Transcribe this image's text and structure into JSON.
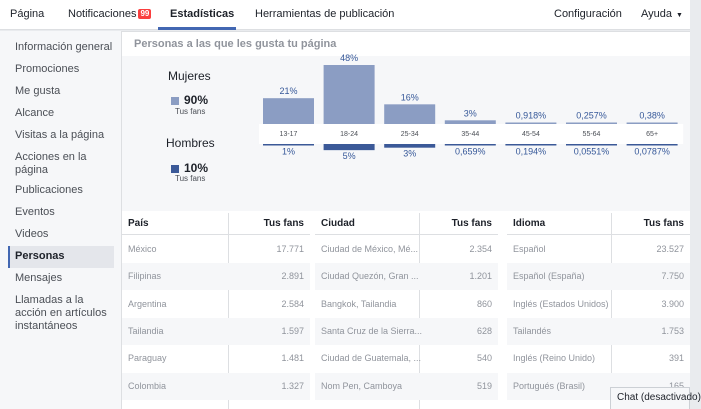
{
  "topnav": {
    "pagina": "Página",
    "notificaciones": "Notificaciones",
    "notif_count": "99",
    "estadisticas": "Estadísticas",
    "herramientas": "Herramientas de publicación",
    "configuracion": "Configuración",
    "ayuda": "Ayuda",
    "caret": "▼"
  },
  "sidebar": {
    "items": [
      "Información general",
      "Promociones",
      "Me gusta",
      "Alcance",
      "Visitas a la página",
      "Acciones en la página",
      "Publicaciones",
      "Eventos",
      "Videos",
      "Personas",
      "Mensajes",
      "Llamadas a la acción en artículos instantáneos"
    ],
    "active_index": 9
  },
  "panel": {
    "title": "Personas a las que les gusta tu página"
  },
  "legend": {
    "women_label": "Mujeres",
    "women_pct": "90%",
    "women_sub": "Tus fans",
    "men_label": "Hombres",
    "men_pct": "10%",
    "men_sub": "Tus fans"
  },
  "colors": {
    "women": "#8b9dc3",
    "men": "#3b5998",
    "link": "#365899",
    "accent": "#4267b2"
  },
  "chart_data": {
    "type": "bar",
    "categories": [
      "13-17",
      "18-24",
      "25-34",
      "35-44",
      "45-54",
      "55-64",
      "65+"
    ],
    "series": [
      {
        "name": "Mujeres",
        "values": [
          21,
          48,
          16,
          3,
          0.918,
          0.257,
          0.38
        ],
        "labels": [
          "21%",
          "48%",
          "16%",
          "3%",
          "0,918%",
          "0,257%",
          "0,38%"
        ]
      },
      {
        "name": "Hombres",
        "values": [
          1,
          5,
          3,
          0.659,
          0.194,
          0.0551,
          0.0787
        ],
        "labels": [
          "1%",
          "5%",
          "3%",
          "0,659%",
          "0,194%",
          "0,0551%",
          "0,0787%"
        ]
      }
    ]
  },
  "tables": [
    {
      "col1": "País",
      "col2": "Tus fans",
      "rows": [
        [
          "México",
          "17.771"
        ],
        [
          "Filipinas",
          "2.891"
        ],
        [
          "Argentina",
          "2.584"
        ],
        [
          "Tailandia",
          "1.597"
        ],
        [
          "Paraguay",
          "1.481"
        ],
        [
          "Colombia",
          "1.327"
        ]
      ]
    },
    {
      "col1": "Ciudad",
      "col2": "Tus fans",
      "rows": [
        [
          "Ciudad de México, Mé...",
          "2.354"
        ],
        [
          "Ciudad Quezón, Gran ...",
          "1.201"
        ],
        [
          "Bangkok, Tailandia",
          "860"
        ],
        [
          "Santa Cruz de la Sierra...",
          "628"
        ],
        [
          "Ciudad de Guatemala, ...",
          "540"
        ],
        [
          "Nom Pen, Camboya",
          "519"
        ]
      ]
    },
    {
      "col1": "Idioma",
      "col2": "Tus fans",
      "rows": [
        [
          "Español",
          "23.527"
        ],
        [
          "Español (España)",
          "7.750"
        ],
        [
          "Inglés (Estados Unidos)",
          "3.900"
        ],
        [
          "Tailandés",
          "1.753"
        ],
        [
          "Inglés (Reino Unido)",
          "391"
        ],
        [
          "Portugués (Brasil)",
          "165"
        ]
      ]
    }
  ],
  "chat": {
    "label": "Chat (desactivado)"
  }
}
